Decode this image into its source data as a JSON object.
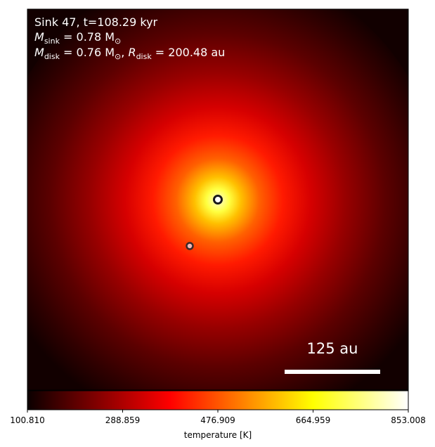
{
  "annotation": {
    "line1": "Sink 47, t=108.29 kyr",
    "line2_symbol": "M",
    "line2_sub": "sink",
    "line2_rest": " = 0.78 M",
    "line2_sun": "⊙",
    "line3_symbol": "M",
    "line3_sub": "disk",
    "line3_mid": " = 0.76 M",
    "line3_sun": "⊙",
    "line3_sep": ", ",
    "line3_symbol2": "R",
    "line3_sub2": "disk",
    "line3_rest": " = 200.48 au"
  },
  "scale_bar": {
    "label": "125 au"
  },
  "colorbar": {
    "label": "temperature [K]",
    "ticks": [
      "100.810",
      "288.859",
      "476.909",
      "664.959",
      "853.008"
    ],
    "colormap": "hot"
  },
  "sinks": [
    {
      "name": "primary-sink"
    },
    {
      "name": "secondary-sink"
    }
  ]
}
